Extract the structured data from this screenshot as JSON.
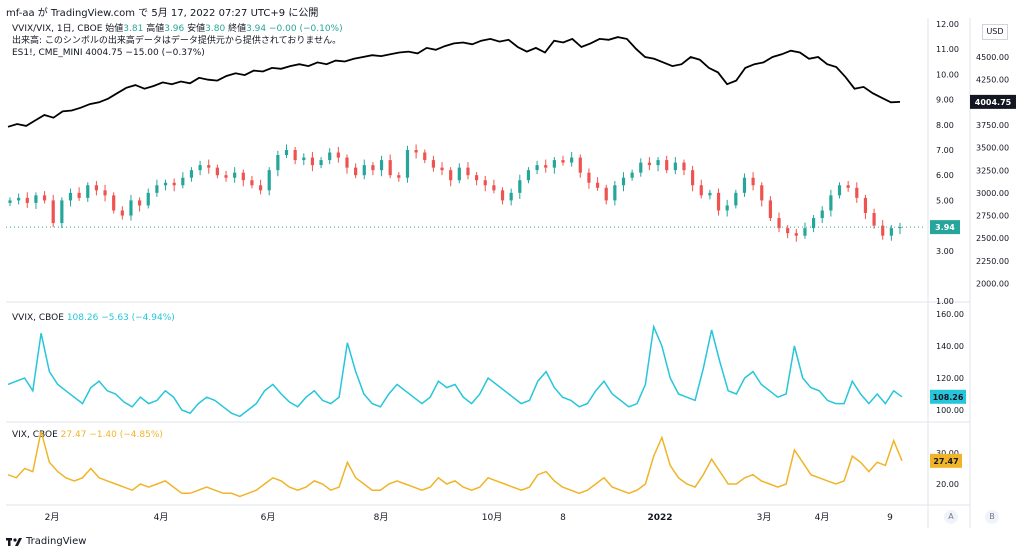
{
  "header": {
    "text": "mf-aa が TradingView.com で 5月 17, 2022 07:27 UTC+9 に公開"
  },
  "legend_main": {
    "title": "VVIX/VIX, 1日, CBOE",
    "o_label": "始値",
    "o_value": "3.81",
    "h_label": "高値",
    "h_value": "3.96",
    "l_label": "安値",
    "l_value": "3.80",
    "c_label": "終値",
    "c_value": "3.94",
    "change": "−0.00 (−0.10%)",
    "notice": "出来高: このシンボルの出来高データはデータ提供元から提供されておりません。",
    "es_line": "ES1!, CME_MINI  4004.75  −15.00 (−0.37%)"
  },
  "legend_vvix": {
    "name": "VVIX, CBOE",
    "value": "108.26",
    "change": "−5.63 (−4.94%)"
  },
  "legend_vix": {
    "name": "VIX, CBOE",
    "value": "27.47",
    "change": "−1.40 (−4.85%)"
  },
  "currency_button": "USD",
  "scale_buttons": [
    "A",
    "B"
  ],
  "footer": {
    "brand": "TradingView"
  },
  "colors": {
    "up": "#26a69a",
    "down": "#ef5350",
    "es": "#000000",
    "vvix": "#26c6da",
    "vix": "#f0b429"
  },
  "chart_data": [
    {
      "type": "line",
      "name": "ES1!",
      "axis_ticks": [
        "4500.00",
        "4250.00",
        "4000.00",
        "3750.00",
        "3500.00",
        "3250.00",
        "3000.00",
        "2750.00",
        "2500.00",
        "2250.00",
        "2000.00"
      ],
      "last_label": "4004.75",
      "series": [
        {
          "name": "ES1!",
          "values": [
            3730,
            3760,
            3740,
            3800,
            3860,
            3830,
            3900,
            3910,
            3940,
            3980,
            4000,
            4040,
            4100,
            4160,
            4190,
            4150,
            4180,
            4220,
            4200,
            4230,
            4210,
            4270,
            4250,
            4240,
            4290,
            4320,
            4300,
            4350,
            4340,
            4380,
            4370,
            4400,
            4420,
            4400,
            4440,
            4420,
            4460,
            4450,
            4480,
            4500,
            4520,
            4510,
            4530,
            4550,
            4560,
            4540,
            4600,
            4580,
            4620,
            4650,
            4660,
            4640,
            4680,
            4700,
            4670,
            4690,
            4610,
            4560,
            4600,
            4550,
            4680,
            4660,
            4700,
            4610,
            4650,
            4700,
            4690,
            4720,
            4700,
            4590,
            4500,
            4480,
            4440,
            4400,
            4420,
            4500,
            4470,
            4380,
            4330,
            4200,
            4240,
            4380,
            4420,
            4440,
            4500,
            4530,
            4570,
            4550,
            4480,
            4500,
            4420,
            4390,
            4280,
            4150,
            4170,
            4100,
            4050,
            4000,
            4004.75
          ]
        }
      ]
    },
    {
      "type": "candlestick",
      "name": "VVIX/VIX",
      "axis_ticks": [
        "12.00",
        "11.00",
        "10.00",
        "9.00",
        "8.00",
        "7.00",
        "6.00",
        "5.00",
        "4.00",
        "3.00",
        "1.00"
      ],
      "last_label": "3.94",
      "series": [
        {
          "name": "VVIX/VIX",
          "values": [
            5.0,
            5.1,
            4.9,
            5.2,
            5.0,
            4.1,
            5.0,
            5.3,
            5.1,
            5.6,
            5.4,
            5.2,
            4.6,
            4.4,
            5.0,
            4.8,
            5.3,
            5.6,
            5.7,
            5.6,
            5.9,
            6.2,
            6.4,
            6.3,
            6.0,
            5.9,
            6.1,
            5.8,
            5.6,
            5.4,
            6.2,
            6.8,
            7.0,
            6.6,
            6.7,
            6.4,
            6.6,
            6.9,
            6.7,
            6.3,
            6.0,
            6.4,
            6.2,
            6.6,
            6.0,
            5.9,
            7.0,
            6.9,
            6.6,
            6.3,
            6.2,
            5.8,
            6.3,
            6.0,
            5.8,
            5.6,
            5.4,
            5.0,
            5.3,
            5.8,
            6.2,
            6.4,
            6.3,
            6.6,
            6.5,
            6.7,
            6.1,
            5.7,
            5.5,
            5.0,
            5.6,
            5.9,
            6.1,
            6.5,
            6.4,
            6.6,
            6.2,
            6.5,
            6.2,
            5.6,
            5.2,
            5.3,
            4.6,
            4.8,
            5.3,
            5.9,
            5.6,
            5.0,
            4.3,
            3.9,
            3.7,
            3.6,
            3.9,
            4.3,
            4.6,
            5.2,
            5.6,
            5.5,
            5.1,
            4.5,
            4.0,
            3.6,
            3.9,
            3.94
          ]
        }
      ]
    },
    {
      "type": "line",
      "name": "VVIX",
      "axis_ticks": [
        "160.00",
        "140.00",
        "120.00",
        "100.00"
      ],
      "last_label": "108.26",
      "series": [
        {
          "name": "VVIX",
          "values": [
            116,
            118,
            120,
            112,
            148,
            124,
            116,
            112,
            108,
            104,
            114,
            118,
            112,
            110,
            105,
            102,
            108,
            104,
            106,
            112,
            108,
            100,
            98,
            104,
            108,
            106,
            102,
            98,
            96,
            100,
            104,
            112,
            116,
            110,
            105,
            102,
            108,
            112,
            106,
            104,
            108,
            142,
            124,
            110,
            104,
            102,
            110,
            116,
            112,
            108,
            104,
            108,
            118,
            114,
            116,
            108,
            104,
            110,
            120,
            116,
            112,
            108,
            104,
            106,
            118,
            124,
            114,
            108,
            106,
            102,
            104,
            112,
            118,
            110,
            106,
            102,
            104,
            116,
            152,
            140,
            120,
            110,
            108,
            106,
            126,
            150,
            130,
            112,
            110,
            120,
            124,
            116,
            112,
            108,
            110,
            140,
            120,
            114,
            112,
            106,
            104,
            104,
            118,
            110,
            104,
            110,
            104,
            112,
            108.26
          ]
        }
      ]
    },
    {
      "type": "line",
      "name": "VIX",
      "axis_ticks": [
        "30.00",
        "20.00"
      ],
      "last_label": "27.47",
      "series": [
        {
          "name": "VIX",
          "values": [
            23,
            22,
            25,
            24,
            37,
            27,
            24,
            22,
            21,
            22,
            25,
            22,
            21,
            20,
            19,
            18,
            20,
            19,
            20,
            21,
            19,
            17,
            17,
            18,
            19,
            18,
            17,
            17,
            16,
            17,
            18,
            20,
            22,
            21,
            19,
            18,
            19,
            21,
            20,
            18,
            19,
            27,
            22,
            20,
            18,
            18,
            20,
            21,
            20,
            19,
            18,
            19,
            22,
            20,
            21,
            19,
            18,
            19,
            22,
            21,
            20,
            19,
            18,
            19,
            23,
            24,
            21,
            19,
            18,
            17,
            18,
            20,
            22,
            19,
            18,
            17,
            18,
            20,
            29,
            35,
            26,
            22,
            20,
            19,
            23,
            28,
            24,
            20,
            20,
            22,
            23,
            21,
            20,
            19,
            20,
            31,
            27,
            23,
            22,
            21,
            20,
            21,
            29,
            27,
            24,
            27,
            26,
            34,
            27.47
          ]
        }
      ]
    }
  ],
  "x_axis": {
    "ticks": [
      "2月",
      "4月",
      "6月",
      "8月",
      "10月",
      "8",
      "2022",
      "3月",
      "4月",
      "9"
    ]
  }
}
